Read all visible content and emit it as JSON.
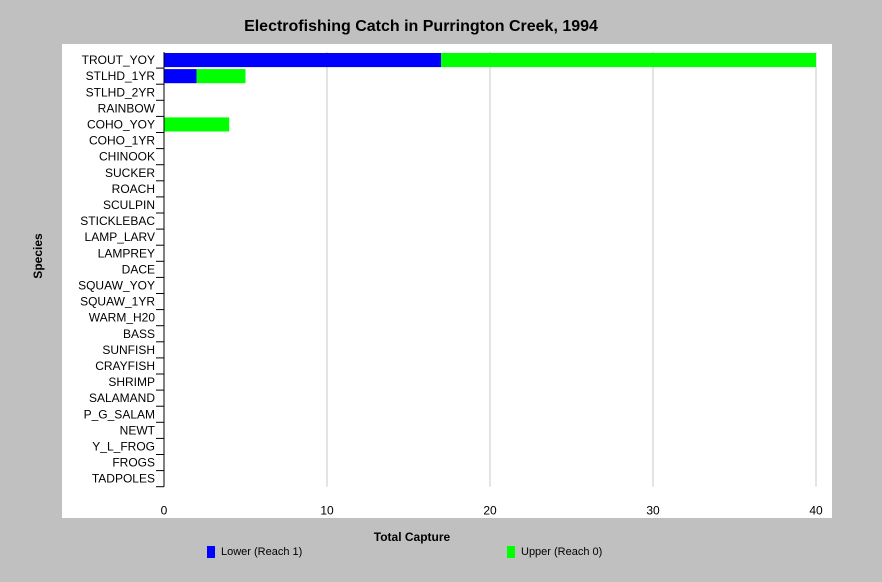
{
  "chart_data": {
    "type": "bar",
    "orientation": "horizontal",
    "stacked": true,
    "title": "Electrofishing Catch in Purrington Creek, 1994",
    "xlabel": "Total Capture",
    "ylabel": "Species",
    "xlim": [
      0,
      40
    ],
    "xticks": [
      0,
      10,
      20,
      30,
      40
    ],
    "grid": "vertical",
    "legend_position": "bottom",
    "categories": [
      "TROUT_YOY",
      "STLHD_1YR",
      "STLHD_2YR",
      "RAINBOW",
      "COHO_YOY",
      "COHO_1YR",
      "CHINOOK",
      "SUCKER",
      "ROACH",
      "SCULPIN",
      "STICKLEBAC",
      "LAMP_LARV",
      "LAMPREY",
      "DACE",
      "SQUAW_YOY",
      "SQUAW_1YR",
      "WARM_H20",
      "BASS",
      "SUNFISH",
      "CRAYFISH",
      "SHRIMP",
      "SALAMAND",
      "P_G_SALAM",
      "NEWT",
      "Y_L_FROG",
      "FROGS",
      "TADPOLES"
    ],
    "series": [
      {
        "name": "Lower (Reach 1)",
        "color": "#0000ff",
        "values": [
          17,
          2,
          0,
          0,
          0,
          0,
          0,
          0,
          0,
          0,
          0,
          0,
          0,
          0,
          0,
          0,
          0,
          0,
          0,
          0,
          0,
          0,
          0,
          0,
          0,
          0,
          0
        ]
      },
      {
        "name": "Upper (Reach 0)",
        "color": "#00ff00",
        "values": [
          23,
          3,
          0,
          0,
          4,
          0,
          0,
          0,
          0,
          0,
          0,
          0,
          0,
          0,
          0,
          0,
          0,
          0,
          0,
          0,
          0,
          0,
          0,
          0,
          0,
          0,
          0
        ]
      }
    ]
  }
}
